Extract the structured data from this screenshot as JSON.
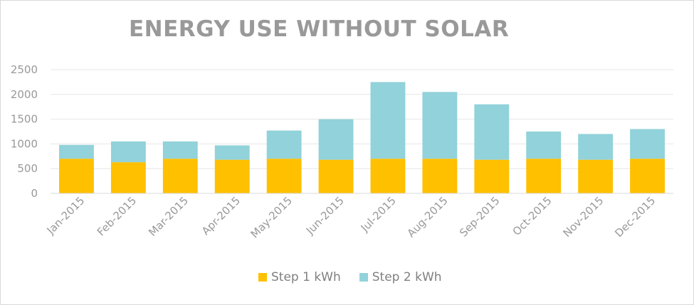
{
  "chart_data": {
    "type": "bar",
    "stacked": true,
    "title": "ENERGY USE WITHOUT SOLAR",
    "xlabel": "",
    "ylabel": "",
    "ylim": [
      0,
      2500
    ],
    "yticks": [
      0,
      500,
      1000,
      1500,
      2000,
      2500
    ],
    "grid": true,
    "legend_position": "bottom",
    "categories": [
      "Jan-2015",
      "Feb-2015",
      "Mar-2015",
      "Apr-2015",
      "May-2015",
      "Jun-2015",
      "Jul-2015",
      "Aug-2015",
      "Sep-2015",
      "Oct-2015",
      "Nov-2015",
      "Dec-2015"
    ],
    "series": [
      {
        "name": "Step 1 kWh",
        "color": "#FFC000",
        "values": [
          700,
          630,
          700,
          680,
          700,
          680,
          700,
          700,
          680,
          700,
          680,
          700
        ]
      },
      {
        "name": "Step 2 kWh",
        "color": "#92D2DA",
        "values": [
          280,
          420,
          350,
          290,
          570,
          820,
          1550,
          1350,
          1120,
          550,
          520,
          600
        ]
      }
    ]
  }
}
